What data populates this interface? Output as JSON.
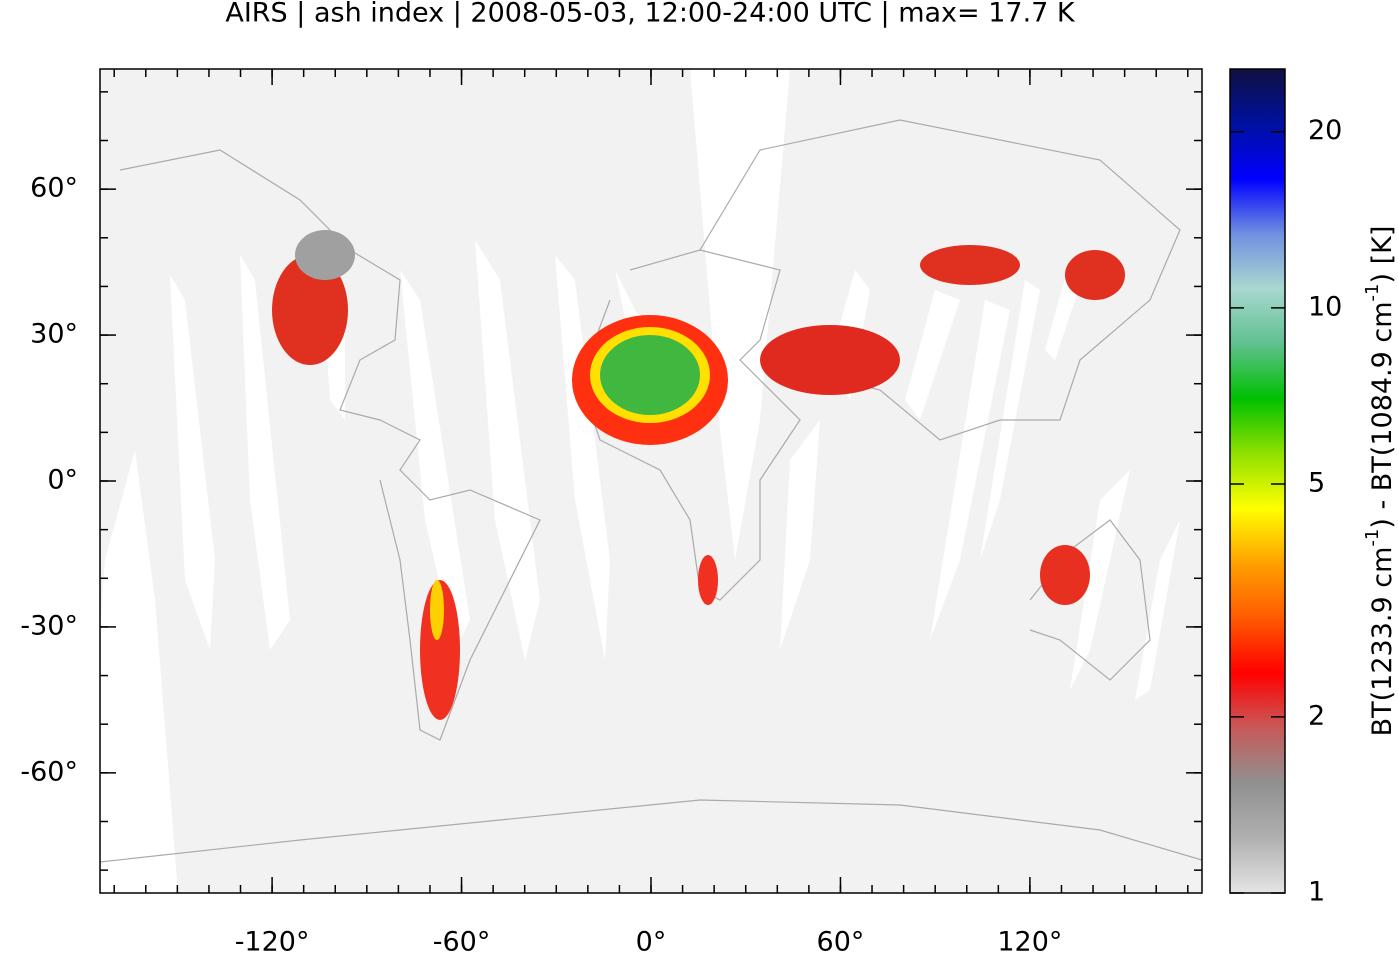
{
  "chart_data": {
    "type": "map",
    "title": "AIRS | ash index | 2008-05-03, 12:00-24:00 UTC | max= 17.7 K",
    "xlim": [
      -174.5,
      174.5
    ],
    "ylim": [
      -84.7,
      84.7
    ],
    "xticks": [
      {
        "value": -120,
        "label": "-120°"
      },
      {
        "value": -60,
        "label": "-60°"
      },
      {
        "value": 0,
        "label": "0°"
      },
      {
        "value": 60,
        "label": "60°"
      },
      {
        "value": 120,
        "label": "120°"
      }
    ],
    "yticks": [
      {
        "value": -60,
        "label": "-60°"
      },
      {
        "value": -30,
        "label": "-30°"
      },
      {
        "value": 0,
        "label": "0°"
      },
      {
        "value": 30,
        "label": "30°"
      },
      {
        "value": 60,
        "label": "60°"
      }
    ],
    "minor_tick_step": 10,
    "colorbar": {
      "label_parts": [
        "BT(1233.9 cm",
        "-1",
        ") - BT(1084.9 cm",
        "-1",
        ") [K]"
      ],
      "lim": [
        1,
        25.6
      ],
      "log_scale": true,
      "ticks": [
        1,
        2,
        5,
        10,
        20
      ],
      "colormap": [
        "#e4e4e4",
        "#b0b0b0",
        "#909090",
        "#c85a5a",
        "#ff0000",
        "#ff5a00",
        "#ffa000",
        "#ffff00",
        "#90e000",
        "#00c000",
        "#60c090",
        "#a8d8d0",
        "#7090e0",
        "#0000ff",
        "#0010a0",
        "#101040"
      ]
    }
  }
}
